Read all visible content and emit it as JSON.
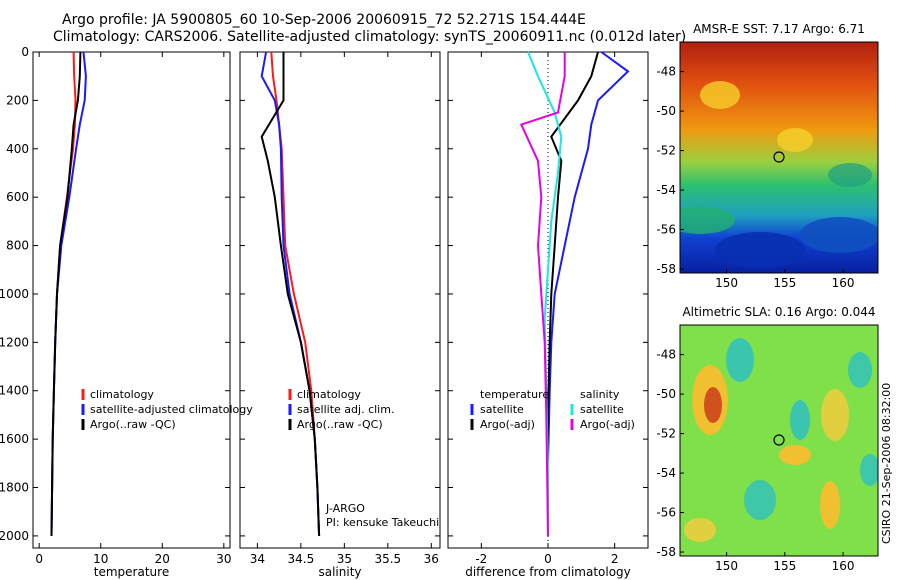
{
  "header": {
    "line1": "Argo profile: JA 5900805_60 10-Sep-2006 20060915_72 52.271S 154.444E",
    "line2": "Climatology: CARS2006. Satellite-adjusted climatology: synTS_20060911.nc (0.012d later)"
  },
  "colors": {
    "climatology": "#ff1a1a",
    "satellite": "#1a1aff",
    "argo": "#000000",
    "argo_adj": "#e600e6",
    "satellite_cyan": "#19e6e6"
  },
  "chart_data": [
    {
      "type": "line",
      "id": "temperature",
      "xlabel": "temperature",
      "ylabel": "",
      "xlim": [
        -1,
        31
      ],
      "ylim": [
        2050,
        0
      ],
      "xticks": [
        0,
        10,
        20,
        30
      ],
      "yticks": [
        0,
        200,
        400,
        600,
        800,
        1000,
        1200,
        1400,
        1600,
        1800,
        2000
      ],
      "legend": [
        "climatology",
        "satellite-adjusted climatology",
        "Argo(..raw -QC)"
      ],
      "series": [
        {
          "name": "climatology",
          "color": "#ff1a1a",
          "x": [
            5.6,
            5.7,
            5.9,
            5.8,
            5.5,
            4.5,
            3.4,
            2.9,
            2.6,
            2.4,
            2.2,
            2.1,
            2.0
          ],
          "y": [
            0,
            100,
            200,
            300,
            400,
            600,
            800,
            1000,
            1200,
            1400,
            1600,
            1800,
            2000
          ]
        },
        {
          "name": "satellite-adjusted climatology",
          "color": "#1a1aff",
          "x": [
            7.2,
            7.6,
            7.4,
            6.6,
            6.0,
            4.9,
            3.6,
            2.9,
            2.6,
            2.4,
            2.2,
            2.1,
            2.0
          ],
          "y": [
            0,
            100,
            200,
            300,
            400,
            600,
            800,
            1000,
            1200,
            1400,
            1600,
            1800,
            2000
          ]
        },
        {
          "name": "Argo(..raw -QC)",
          "color": "#000000",
          "x": [
            6.7,
            6.6,
            6.3,
            5.6,
            5.3,
            4.6,
            3.4,
            2.9,
            2.6,
            2.4,
            2.2,
            2.1,
            2.0
          ],
          "y": [
            0,
            100,
            200,
            300,
            400,
            600,
            800,
            1000,
            1200,
            1400,
            1600,
            1800,
            2000
          ]
        }
      ]
    },
    {
      "type": "line",
      "id": "salinity",
      "xlabel": "salinity",
      "ylabel": "",
      "xlim": [
        33.8,
        36.1
      ],
      "ylim": [
        2050,
        0
      ],
      "xticks": [
        34,
        34.5,
        35,
        35.5,
        36
      ],
      "legend": [
        "climatology",
        "satellite adj. clim.",
        "Argo(..raw -QC)"
      ],
      "annotation": [
        "J-ARGO",
        "PI: kensuke Takeuchi"
      ],
      "series": [
        {
          "name": "climatology",
          "color": "#ff1a1a",
          "x": [
            34.16,
            34.18,
            34.22,
            34.25,
            34.28,
            34.3,
            34.32,
            34.42,
            34.55,
            34.62,
            34.66,
            34.69,
            34.71
          ],
          "y": [
            0,
            100,
            200,
            300,
            400,
            600,
            800,
            1000,
            1200,
            1400,
            1600,
            1800,
            2000
          ]
        },
        {
          "name": "satellite adj. clim.",
          "color": "#1a1aff",
          "x": [
            34.1,
            34.05,
            34.2,
            34.25,
            34.27,
            34.28,
            34.3,
            34.37,
            34.5,
            34.6,
            34.66,
            34.69,
            34.71
          ],
          "y": [
            0,
            100,
            200,
            300,
            400,
            600,
            800,
            1000,
            1200,
            1400,
            1600,
            1800,
            2000
          ]
        },
        {
          "name": "Argo(..raw -QC)",
          "color": "#000000",
          "x": [
            34.3,
            34.3,
            34.3,
            34.05,
            34.12,
            34.2,
            34.27,
            34.35,
            34.5,
            34.6,
            34.66,
            34.69,
            34.71
          ],
          "y": [
            0,
            100,
            200,
            350,
            450,
            600,
            800,
            1000,
            1200,
            1400,
            1600,
            1800,
            2000
          ]
        }
      ]
    },
    {
      "type": "line",
      "id": "difference",
      "xlabel": "difference from climatology",
      "ylabel": "",
      "xlim": [
        -3,
        3
      ],
      "ylim": [
        2050,
        0
      ],
      "xticks": [
        -2,
        0,
        2
      ],
      "legend": [
        "temperature",
        "satellite",
        "Argo(-adj)",
        "salinity",
        "satellite",
        "Argo(-adj)"
      ],
      "series": [
        {
          "name": "temperature satellite",
          "color": "#1a1aff",
          "x": [
            1.6,
            2.4,
            1.5,
            1.3,
            1.2,
            0.8,
            0.5,
            0.2,
            0.1,
            0.05,
            0.0,
            0.0
          ],
          "y": [
            0,
            80,
            200,
            300,
            400,
            600,
            800,
            1000,
            1200,
            1400,
            1700,
            2000
          ]
        },
        {
          "name": "temperature Argo(-adj)",
          "color": "#000000",
          "x": [
            1.5,
            1.3,
            0.9,
            0.1,
            0.4,
            0.3,
            0.2,
            0.1,
            0.05,
            0.0,
            0.0
          ],
          "y": [
            0,
            100,
            200,
            350,
            450,
            600,
            800,
            1000,
            1200,
            1500,
            2000
          ]
        },
        {
          "name": "salinity satellite",
          "color": "#19e6e6",
          "x": [
            -0.6,
            -0.3,
            0.2,
            0.4,
            0.3,
            0.1,
            0.0,
            -0.1,
            -0.05,
            0.0,
            0.0
          ],
          "y": [
            0,
            100,
            250,
            350,
            500,
            700,
            900,
            1100,
            1400,
            1700,
            2000
          ]
        },
        {
          "name": "salinity Argo(-adj)",
          "color": "#e600e6",
          "x": [
            0.5,
            0.5,
            0.3,
            -0.8,
            -0.3,
            -0.2,
            -0.3,
            -0.2,
            -0.1,
            -0.05,
            0.0
          ],
          "y": [
            0,
            100,
            250,
            300,
            450,
            600,
            800,
            1000,
            1200,
            1500,
            2000
          ]
        }
      ]
    },
    {
      "type": "heatmap",
      "id": "sst-map",
      "title": "AMSR-E SST: 7.17 Argo: 6.71",
      "xlim": [
        146,
        163
      ],
      "ylim": [
        -58.2,
        -46.5
      ],
      "xticks": [
        150,
        155,
        160
      ],
      "yticks": [
        -48,
        -50,
        -52,
        -54,
        -56,
        -58
      ],
      "marker": {
        "lon": 154.444,
        "lat": -52.271
      }
    },
    {
      "type": "heatmap",
      "id": "sla-map",
      "title": "Altimetric SLA: 0.16 Argo: 0.044",
      "xlim": [
        146,
        163
      ],
      "ylim": [
        -58.2,
        -46.5
      ],
      "xticks": [
        150,
        155,
        160
      ],
      "yticks": [
        -48,
        -50,
        -52,
        -54,
        -56,
        -58
      ],
      "marker": {
        "lon": 154.444,
        "lat": -52.271
      }
    }
  ],
  "footer": {
    "credit": "CSIRO 21-Sep-2006 08:32:00"
  }
}
